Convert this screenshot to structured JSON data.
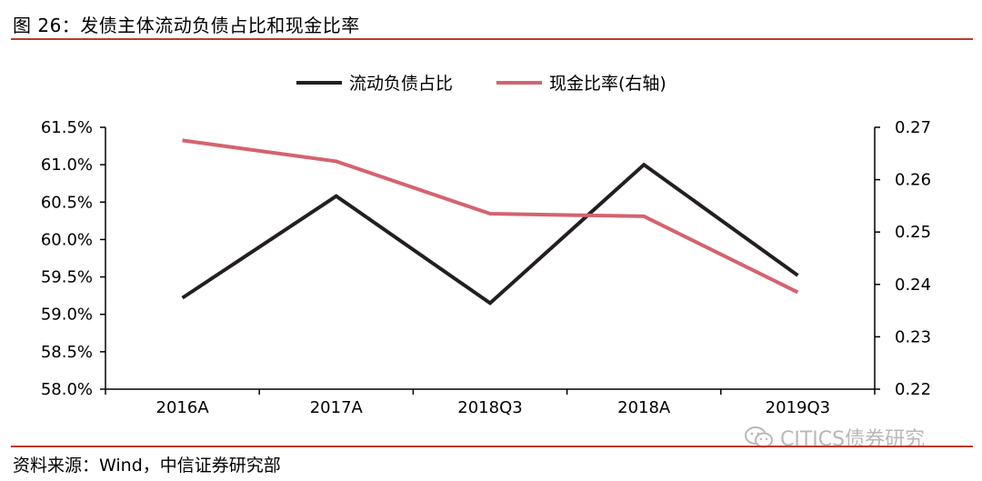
{
  "header": {
    "title": "图 26：发债主体流动负债占比和现金比率"
  },
  "footer": {
    "source": "资料来源：Wind，中信证券研究部"
  },
  "watermark": {
    "text": "CITICS债券研究",
    "icon": "wechat-icon"
  },
  "chart_data": {
    "type": "line",
    "categories": [
      "2016A",
      "2017A",
      "2018Q3",
      "2018A",
      "2019Q3"
    ],
    "series": [
      {
        "name": "流动负债占比",
        "axis": "left",
        "color": "#231f20",
        "values": [
          59.22,
          60.58,
          59.15,
          61.0,
          59.52
        ]
      },
      {
        "name": "现金比率(右轴)",
        "axis": "right",
        "color": "#d4636f",
        "values": [
          0.2675,
          0.2635,
          0.2535,
          0.253,
          0.2385
        ]
      }
    ],
    "y_left": {
      "min": 58.0,
      "max": 61.5,
      "ticks": [
        "58.0%",
        "58.5%",
        "59.0%",
        "59.5%",
        "60.0%",
        "60.5%",
        "61.0%",
        "61.5%"
      ]
    },
    "y_right": {
      "min": 0.22,
      "max": 0.27,
      "ticks": [
        "0.22",
        "0.23",
        "0.24",
        "0.25",
        "0.26",
        "0.27"
      ]
    },
    "legend": "top-center",
    "grid": false
  }
}
